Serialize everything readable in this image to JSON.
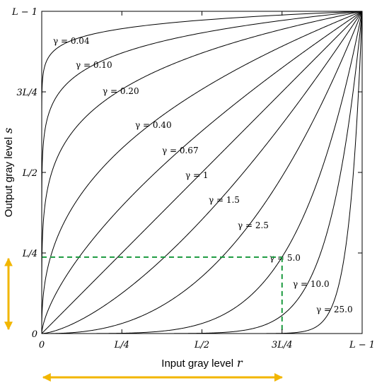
{
  "chart_data": {
    "type": "line",
    "function": "s = (L - 1) * (r / (L - 1))^γ",
    "xlabel": "Input gray level",
    "xlabel_var": "r",
    "ylabel": "Output gray level",
    "ylabel_var": "s",
    "xlim": [
      0,
      1
    ],
    "ylim": [
      0,
      1
    ],
    "x_ticks": [
      {
        "value": 0,
        "label": "0"
      },
      {
        "value": 0.25,
        "label": "L/4"
      },
      {
        "value": 0.5,
        "label": "L/2"
      },
      {
        "value": 0.75,
        "label": "3L/4"
      },
      {
        "value": 1,
        "label": "L − 1"
      }
    ],
    "y_ticks": [
      {
        "value": 0,
        "label": "0"
      },
      {
        "value": 0.25,
        "label": "L/4"
      },
      {
        "value": 0.5,
        "label": "L/2"
      },
      {
        "value": 0.75,
        "label": "3L/4"
      },
      {
        "value": 1,
        "label": "L − 1"
      }
    ],
    "series": [
      {
        "name": "γ = 0.04",
        "gamma": 0.04
      },
      {
        "name": "γ = 0.10",
        "gamma": 0.1
      },
      {
        "name": "γ = 0.20",
        "gamma": 0.2
      },
      {
        "name": "γ = 0.40",
        "gamma": 0.4
      },
      {
        "name": "γ = 0.67",
        "gamma": 0.67
      },
      {
        "name": "γ = 1",
        "gamma": 1
      },
      {
        "name": "γ = 1.5",
        "gamma": 1.5
      },
      {
        "name": "γ = 2.5",
        "gamma": 2.5
      },
      {
        "name": "γ = 5.0",
        "gamma": 5.0
      },
      {
        "name": "γ = 10.0",
        "gamma": 10.0
      },
      {
        "name": "γ = 25.0",
        "gamma": 25.0
      }
    ],
    "annotations": {
      "highlight_gamma": 5.0,
      "highlight_x": 0.75,
      "highlight_y": 0.237,
      "highlight_color": "#1a9a3e",
      "arrow_color": "#f2b600"
    }
  }
}
